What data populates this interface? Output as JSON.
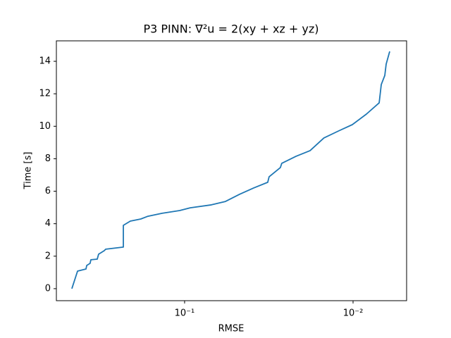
{
  "chart_data": {
    "type": "line",
    "title": "P3 PINN: ∇²u = 2(xy + xz + yz)",
    "x_label": "RMSE",
    "y_label": "Time [s]",
    "xscale": "log",
    "grid": false,
    "xlim": [
      0.577,
      0.00481
    ],
    "ylim": [
      -0.74,
      15.26
    ],
    "xticks": [
      {
        "value": 0.1,
        "label": "10⁻¹"
      },
      {
        "value": 0.01,
        "label": "10⁻²"
      }
    ],
    "yticks": [
      0,
      2,
      4,
      6,
      8,
      10,
      12,
      14
    ],
    "series": [
      {
        "color": "#1f77b4",
        "x": [
          0.467,
          0.432,
          0.385,
          0.381,
          0.364,
          0.36,
          0.33,
          0.324,
          0.3,
          0.294,
          0.231,
          0.231,
          0.21,
          0.182,
          0.165,
          0.136,
          0.107,
          0.0926,
          0.0694,
          0.0572,
          0.0472,
          0.0389,
          0.0321,
          0.0315,
          0.027,
          0.0265,
          0.0218,
          0.018,
          0.0149,
          0.0122,
          0.0101,
          0.00833,
          0.007,
          0.0068,
          0.00648,
          0.00636,
          0.00606
        ],
        "values": [
          0,
          1.08,
          1.21,
          1.43,
          1.56,
          1.78,
          1.82,
          2.12,
          2.34,
          2.43,
          2.56,
          3.9,
          4.16,
          4.29,
          4.46,
          4.64,
          4.81,
          4.98,
          5.16,
          5.37,
          5.81,
          6.2,
          6.55,
          6.89,
          7.46,
          7.72,
          8.15,
          8.5,
          9.28,
          9.71,
          10.1,
          10.75,
          11.44,
          12.57,
          13.13,
          13.83,
          14.61
        ]
      }
    ]
  }
}
